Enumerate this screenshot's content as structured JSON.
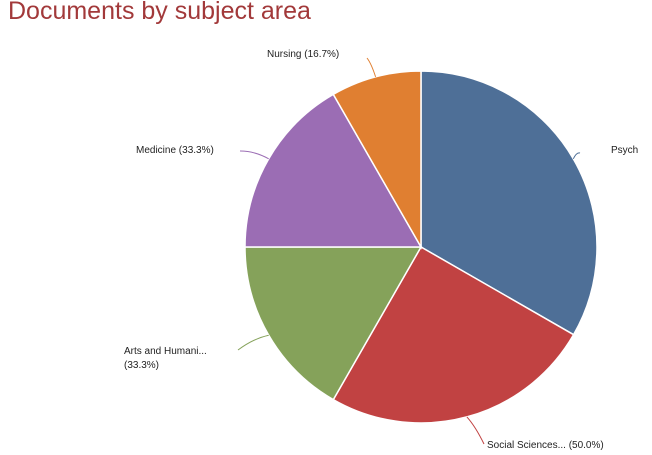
{
  "chart_data": {
    "type": "pie",
    "title": "Documents by subject area",
    "slices": [
      {
        "label": "Psych",
        "value": 33.3,
        "color": "#4e6f97"
      },
      {
        "label": "Social Sciences... (50.0%)",
        "value": 25.0,
        "color": "#c14242"
      },
      {
        "label": "Arts and Humani...",
        "label_line2": "(33.3%)",
        "value": 16.7,
        "color": "#85a25a"
      },
      {
        "label": "Medicine (33.3%)",
        "value": 16.7,
        "color": "#9b6db4"
      },
      {
        "label": "Nursing (16.7%)",
        "value": 8.3,
        "color": "#e07f31"
      }
    ],
    "start_angle_deg": 0,
    "direction": "clockwise",
    "legend": "none"
  }
}
